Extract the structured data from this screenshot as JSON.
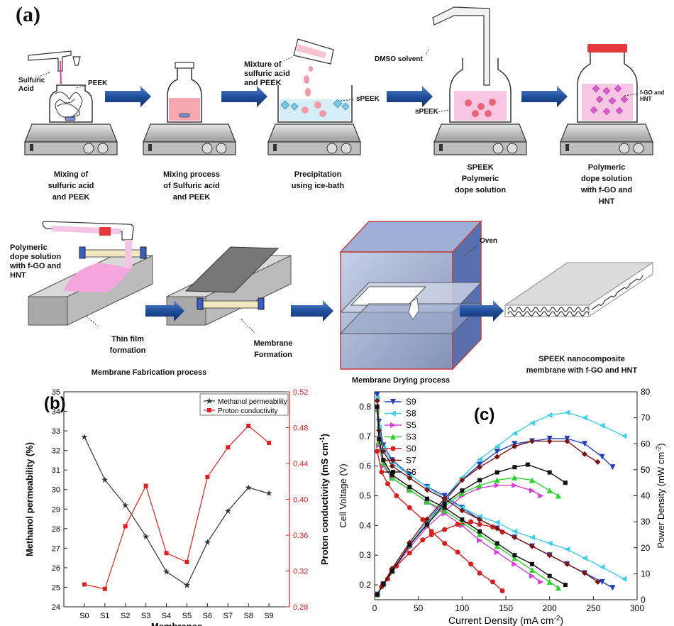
{
  "panel_a": {
    "letter": "(a)",
    "steps": [
      {
        "caption": [
          "Mixing of",
          "sulfuric acid",
          "and PEEK"
        ]
      },
      {
        "caption": [
          "Mixing process",
          "of Sulfuric acid",
          "and PEEK"
        ]
      },
      {
        "caption": [
          "Precipitation",
          "using ice-bath"
        ]
      },
      {
        "caption": [
          "SPEEK",
          "Polymeric",
          "dope solution"
        ]
      },
      {
        "caption": [
          "Polymeric",
          "dope solution",
          "with f-GO and",
          "HNT"
        ]
      }
    ],
    "labels": {
      "sulfuric_acid": [
        "Sulfuric",
        "Acid"
      ],
      "peek": "PEEK",
      "mixture": [
        "Mixture of",
        "sulfuric acid",
        "and PEEK"
      ],
      "speek_precip": "sPEEK",
      "dmso": "DMSO solvent",
      "speek_flask": "sPEEK",
      "fgo_hnt": "f-GO and HNT",
      "dope_pour": [
        "Polymeric",
        "dope solution",
        "with f-GO and",
        "HNT"
      ],
      "oven": "Oven",
      "thin_film": [
        "Thin film",
        "formation"
      ],
      "membrane_formation": [
        "Membrane",
        "Formation"
      ],
      "fabrication": "Membrane Fabrication process",
      "drying": "Membrane Drying process",
      "final": [
        "SPEEK nanocomposite",
        "membrane with f-GO and HNT"
      ]
    },
    "colors": {
      "arrow": "#1f4f9c",
      "pink": "#f4a6c8",
      "oven": "#3d5ea6"
    }
  },
  "chart_data": [
    {
      "type": "line",
      "letter": "(b)",
      "categories": [
        "S0",
        "S1",
        "S2",
        "S3",
        "S4",
        "S5",
        "S6",
        "S7",
        "S8",
        "S9"
      ],
      "xlabel": "Membranes",
      "ylabel_left": "Methanol permeability (%)",
      "ylabel_right": "Proton conductivity (mS cm-1)",
      "ylim_left": [
        24,
        35
      ],
      "yticks_left": [
        24,
        25,
        26,
        27,
        28,
        29,
        30,
        31,
        32,
        33,
        34,
        35
      ],
      "ylim_right": [
        0.28,
        0.52
      ],
      "yticks_right": [
        "0.28",
        "0.32",
        "0.36",
        "0.40",
        "0.44",
        "0.48",
        "0.52"
      ],
      "series": [
        {
          "name": "Methanol permeability",
          "axis": "left",
          "color": "#333333",
          "marker": "star",
          "values": [
            32.7,
            30.5,
            29.2,
            27.6,
            25.8,
            25.1,
            27.3,
            28.9,
            30.1,
            29.8
          ]
        },
        {
          "name": "Proton conductivity",
          "axis": "right",
          "color": "#e02020",
          "marker": "square",
          "values": [
            0.305,
            0.3,
            0.37,
            0.415,
            0.34,
            0.33,
            0.425,
            0.458,
            0.482,
            0.463
          ]
        }
      ]
    },
    {
      "type": "line",
      "letter": "(c)",
      "xlabel": "Current Density (mA cm-2)",
      "ylabel_left": "Cell Voltage (V)",
      "ylabel_right": "Power Density (mW cm-2)",
      "xlim": [
        0,
        300
      ],
      "xticks": [
        0,
        50,
        100,
        150,
        200,
        250,
        300
      ],
      "ylim_left": [
        0.15,
        0.85
      ],
      "yticks_left": [
        "0.2",
        "0.3",
        "0.4",
        "0.5",
        "0.6",
        "0.7",
        "0.8"
      ],
      "ylim_right": [
        0,
        80
      ],
      "yticks_right": [
        0,
        10,
        20,
        30,
        40,
        50,
        60,
        70,
        80
      ],
      "legend_position": "top-left",
      "series": [
        {
          "name": "S9",
          "color": "#1f3fbf",
          "marker": "triangle-down",
          "voltage": [
            [
              3,
              0.84
            ],
            [
              5,
              0.75
            ],
            [
              10,
              0.67
            ],
            [
              20,
              0.62
            ],
            [
              40,
              0.57
            ],
            [
              60,
              0.53
            ],
            [
              80,
              0.5
            ],
            [
              100,
              0.46
            ],
            [
              120,
              0.42
            ],
            [
              140,
              0.39
            ],
            [
              160,
              0.36
            ],
            [
              180,
              0.33
            ],
            [
              200,
              0.3
            ],
            [
              220,
              0.27
            ],
            [
              240,
              0.24
            ],
            [
              260,
              0.21
            ],
            [
              272,
              0.19
            ]
          ],
          "power": [
            [
              3,
              2
            ],
            [
              10,
              6
            ],
            [
              20,
              11
            ],
            [
              40,
              21
            ],
            [
              60,
              30
            ],
            [
              80,
              38
            ],
            [
              100,
              46
            ],
            [
              120,
              52
            ],
            [
              140,
              57
            ],
            [
              160,
              60
            ],
            [
              180,
              61
            ],
            [
              200,
              62
            ],
            [
              220,
              62
            ],
            [
              240,
              60
            ],
            [
              260,
              55
            ],
            [
              272,
              51
            ]
          ]
        },
        {
          "name": "S8",
          "color": "#3fd0e8",
          "marker": "triangle-left",
          "voltage": [
            [
              3,
              0.83
            ],
            [
              5,
              0.73
            ],
            [
              10,
              0.66
            ],
            [
              20,
              0.61
            ],
            [
              40,
              0.57
            ],
            [
              60,
              0.53
            ],
            [
              80,
              0.49
            ],
            [
              100,
              0.46
            ],
            [
              120,
              0.43
            ],
            [
              140,
              0.41
            ],
            [
              160,
              0.38
            ],
            [
              180,
              0.36
            ],
            [
              200,
              0.34
            ],
            [
              220,
              0.32
            ],
            [
              240,
              0.29
            ],
            [
              260,
              0.26
            ],
            [
              285,
              0.22
            ]
          ],
          "power": [
            [
              3,
              2
            ],
            [
              10,
              6
            ],
            [
              20,
              11
            ],
            [
              40,
              21
            ],
            [
              60,
              30
            ],
            [
              80,
              39
            ],
            [
              100,
              47
            ],
            [
              120,
              54
            ],
            [
              140,
              59
            ],
            [
              160,
              64
            ],
            [
              180,
              68
            ],
            [
              200,
              71
            ],
            [
              220,
              72
            ],
            [
              240,
              70
            ],
            [
              260,
              67
            ],
            [
              285,
              63
            ]
          ]
        },
        {
          "name": "S5",
          "color": "#d63fd6",
          "marker": "triangle-right",
          "voltage": [
            [
              3,
              0.79
            ],
            [
              5,
              0.67
            ],
            [
              10,
              0.6
            ],
            [
              20,
              0.56
            ],
            [
              40,
              0.52
            ],
            [
              60,
              0.48
            ],
            [
              80,
              0.44
            ],
            [
              100,
              0.4
            ],
            [
              120,
              0.35
            ],
            [
              140,
              0.31
            ],
            [
              160,
              0.27
            ],
            [
              180,
              0.23
            ],
            [
              190,
              0.21
            ]
          ],
          "power": [
            [
              3,
              2
            ],
            [
              10,
              6
            ],
            [
              20,
              11
            ],
            [
              40,
              20
            ],
            [
              60,
              28
            ],
            [
              80,
              34
            ],
            [
              100,
              40
            ],
            [
              120,
              43
            ],
            [
              140,
              44
            ],
            [
              160,
              44
            ],
            [
              180,
              42
            ],
            [
              190,
              40
            ]
          ]
        },
        {
          "name": "S3",
          "color": "#2ecf2e",
          "marker": "triangle-up",
          "voltage": [
            [
              3,
              0.79
            ],
            [
              5,
              0.68
            ],
            [
              10,
              0.61
            ],
            [
              20,
              0.56
            ],
            [
              40,
              0.52
            ],
            [
              60,
              0.48
            ],
            [
              80,
              0.45
            ],
            [
              100,
              0.41
            ],
            [
              120,
              0.37
            ],
            [
              140,
              0.33
            ],
            [
              160,
              0.29
            ],
            [
              180,
              0.25
            ],
            [
              200,
              0.21
            ],
            [
              210,
              0.19
            ]
          ],
          "power": [
            [
              3,
              2
            ],
            [
              10,
              6
            ],
            [
              20,
              11
            ],
            [
              40,
              21
            ],
            [
              60,
              29
            ],
            [
              80,
              36
            ],
            [
              100,
              41
            ],
            [
              120,
              44
            ],
            [
              140,
              46
            ],
            [
              160,
              47
            ],
            [
              180,
              46
            ],
            [
              200,
              42
            ],
            [
              210,
              40
            ]
          ]
        },
        {
          "name": "S0",
          "color": "#d42020",
          "marker": "circle",
          "voltage": [
            [
              3,
              0.65
            ],
            [
              8,
              0.58
            ],
            [
              15,
              0.54
            ],
            [
              25,
              0.5
            ],
            [
              40,
              0.46
            ],
            [
              55,
              0.42
            ],
            [
              65,
              0.38
            ],
            [
              80,
              0.34
            ],
            [
              95,
              0.31
            ],
            [
              110,
              0.27
            ],
            [
              120,
              0.24
            ],
            [
              135,
              0.21
            ],
            [
              146,
              0.18
            ]
          ],
          "power": [
            [
              3,
              2
            ],
            [
              8,
              5
            ],
            [
              15,
              8
            ],
            [
              25,
              13
            ],
            [
              40,
              18
            ],
            [
              55,
              23
            ],
            [
              65,
              25
            ],
            [
              80,
              27
            ],
            [
              95,
              29
            ],
            [
              110,
              30
            ],
            [
              120,
              29
            ],
            [
              135,
              28
            ],
            [
              146,
              26
            ]
          ]
        },
        {
          "name": "S7",
          "color": "#7a1414",
          "marker": "diamond",
          "voltage": [
            [
              3,
              0.82
            ],
            [
              5,
              0.72
            ],
            [
              10,
              0.65
            ],
            [
              20,
              0.6
            ],
            [
              40,
              0.56
            ],
            [
              60,
              0.52
            ],
            [
              80,
              0.49
            ],
            [
              100,
              0.45
            ],
            [
              120,
              0.42
            ],
            [
              140,
              0.39
            ],
            [
              160,
              0.36
            ],
            [
              180,
              0.33
            ],
            [
              200,
              0.3
            ],
            [
              220,
              0.27
            ],
            [
              240,
              0.24
            ],
            [
              255,
              0.21
            ]
          ],
          "power": [
            [
              3,
              2
            ],
            [
              10,
              6
            ],
            [
              20,
              12
            ],
            [
              40,
              22
            ],
            [
              60,
              31
            ],
            [
              80,
              39
            ],
            [
              100,
              46
            ],
            [
              120,
              51
            ],
            [
              140,
              55
            ],
            [
              160,
              59
            ],
            [
              180,
              61
            ],
            [
              200,
              61
            ],
            [
              220,
              61
            ],
            [
              240,
              56
            ],
            [
              255,
              53
            ]
          ]
        },
        {
          "name": "S6",
          "color": "#111111",
          "marker": "square",
          "voltage": [
            [
              3,
              0.8
            ],
            [
              5,
              0.69
            ],
            [
              10,
              0.62
            ],
            [
              20,
              0.57
            ],
            [
              40,
              0.53
            ],
            [
              60,
              0.49
            ],
            [
              80,
              0.46
            ],
            [
              100,
              0.42
            ],
            [
              120,
              0.38
            ],
            [
              140,
              0.34
            ],
            [
              160,
              0.3
            ],
            [
              180,
              0.27
            ],
            [
              200,
              0.23
            ],
            [
              218,
              0.2
            ]
          ],
          "power": [
            [
              3,
              2
            ],
            [
              10,
              6
            ],
            [
              20,
              11
            ],
            [
              40,
              21
            ],
            [
              60,
              29
            ],
            [
              80,
              37
            ],
            [
              100,
              42
            ],
            [
              120,
              46
            ],
            [
              140,
              49
            ],
            [
              160,
              51
            ],
            [
              175,
              52
            ],
            [
              200,
              49
            ],
            [
              218,
              45
            ]
          ]
        }
      ]
    }
  ]
}
